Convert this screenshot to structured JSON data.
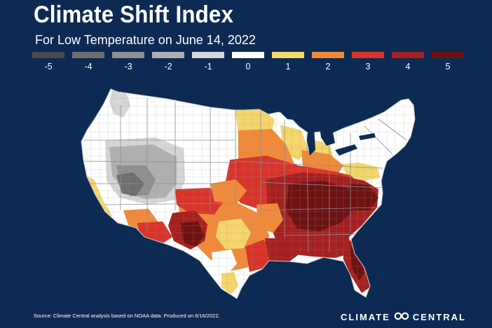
{
  "title": "Climate Shift Index",
  "subtitle": "For Low Temperature on June 14, 2022",
  "legend": [
    {
      "label": "-5",
      "color": "#4a4a4a"
    },
    {
      "label": "-4",
      "color": "#6e6e6e"
    },
    {
      "label": "-3",
      "color": "#8f8f8f"
    },
    {
      "label": "-2",
      "color": "#b0b0b0"
    },
    {
      "label": "-1",
      "color": "#d6d6d6"
    },
    {
      "label": "0",
      "color": "#ffffff"
    },
    {
      "label": "1",
      "color": "#f5d66b"
    },
    {
      "label": "2",
      "color": "#f08a3a"
    },
    {
      "label": "3",
      "color": "#d9342b"
    },
    {
      "label": "4",
      "color": "#a5201f"
    },
    {
      "label": "5",
      "color": "#6e1111"
    }
  ],
  "footer": {
    "source": "Source: Climate Central analysis based on NOAA data. Produced on 6/16/2022.",
    "brand_left": "CLIMATE",
    "brand_right": "CENTRAL"
  },
  "colors": {
    "background": "#0d2a52",
    "outline": "#c8ccd4"
  }
}
